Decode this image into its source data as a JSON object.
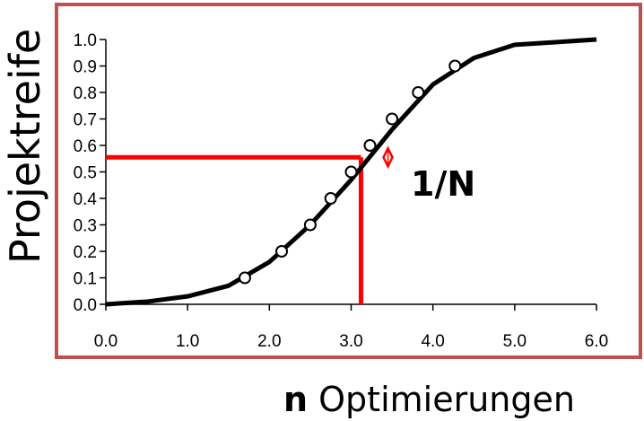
{
  "chart_data": {
    "type": "line",
    "ylabel": "Projektreife",
    "xlabel_bold": "n",
    "xlabel_rest": " Optimierungen",
    "xlim": [
      0,
      6
    ],
    "ylim": [
      0,
      1
    ],
    "x_ticks": [
      "0.0",
      "1.0",
      "2.0",
      "3.0",
      "4.0",
      "5.0",
      "6.0"
    ],
    "y_ticks": [
      "0.0",
      "0.1",
      "0.2",
      "0.3",
      "0.4",
      "0.5",
      "0.6",
      "0.7",
      "0.8",
      "0.9",
      "1.0"
    ],
    "curve": {
      "x": [
        0,
        0.5,
        1.0,
        1.5,
        2.0,
        2.5,
        3.0,
        3.5,
        4.0,
        4.5,
        5.0,
        5.5,
        6.0
      ],
      "y": [
        0.0,
        0.01,
        0.03,
        0.07,
        0.16,
        0.3,
        0.47,
        0.66,
        0.83,
        0.93,
        0.98,
        0.99,
        1.0
      ]
    },
    "markers": {
      "x": [
        1.7,
        2.15,
        2.5,
        2.75,
        3.0,
        3.23,
        3.5,
        3.82,
        4.27
      ],
      "y": [
        0.1,
        0.2,
        0.3,
        0.4,
        0.5,
        0.6,
        0.7,
        0.8,
        0.9
      ]
    },
    "reference_point": {
      "x": 3.12,
      "y": 0.555
    },
    "diamond_point": {
      "x": 3.45,
      "y": 0.555
    },
    "annotation": "1/N",
    "colors": {
      "curve": "#000000",
      "reference": "#ff0000",
      "frame": "#c0504d"
    }
  }
}
